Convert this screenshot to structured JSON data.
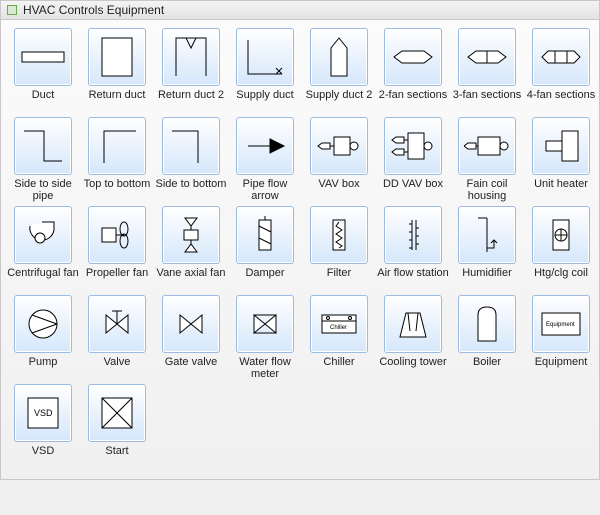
{
  "panel": {
    "title": "HVAC Controls Equipment"
  },
  "items": [
    {
      "id": "duct",
      "label": "Duct"
    },
    {
      "id": "return-duct",
      "label": "Return duct"
    },
    {
      "id": "return-duct-2",
      "label": "Return duct 2"
    },
    {
      "id": "supply-duct",
      "label": "Supply duct"
    },
    {
      "id": "supply-duct-2",
      "label": "Supply duct 2"
    },
    {
      "id": "2-fan-sections",
      "label": "2-fan sections"
    },
    {
      "id": "3-fan-sections",
      "label": "3-fan sections"
    },
    {
      "id": "4-fan-sections",
      "label": "4-fan sections"
    },
    {
      "id": "side-to-side-pipe",
      "label": "Side to side pipe"
    },
    {
      "id": "top-to-bottom",
      "label": "Top to bottom"
    },
    {
      "id": "side-to-bottom",
      "label": "Side to bottom"
    },
    {
      "id": "pipe-flow-arrow",
      "label": "Pipe flow arrow"
    },
    {
      "id": "vav-box",
      "label": "VAV box"
    },
    {
      "id": "dd-vav-box",
      "label": "DD VAV box"
    },
    {
      "id": "fan-coil-housing",
      "label": "Fain coil housing"
    },
    {
      "id": "unit-heater",
      "label": "Unit heater"
    },
    {
      "id": "centrifugal-fan",
      "label": "Centrifugal fan"
    },
    {
      "id": "propeller-fan",
      "label": "Propeller fan"
    },
    {
      "id": "vane-axial-fan",
      "label": "Vane axial fan"
    },
    {
      "id": "damper",
      "label": "Damper"
    },
    {
      "id": "filter",
      "label": "Filter"
    },
    {
      "id": "air-flow-station",
      "label": "Air flow station"
    },
    {
      "id": "humidifier",
      "label": "Humidifier"
    },
    {
      "id": "htg-clg-coil",
      "label": "Htg/clg coil"
    },
    {
      "id": "pump",
      "label": "Pump"
    },
    {
      "id": "valve",
      "label": "Valve"
    },
    {
      "id": "gate-valve",
      "label": "Gate valve"
    },
    {
      "id": "water-flow-meter",
      "label": "Water flow meter"
    },
    {
      "id": "chiller",
      "label": "Chiller"
    },
    {
      "id": "cooling-tower",
      "label": "Cooling tower"
    },
    {
      "id": "boiler",
      "label": "Boiler"
    },
    {
      "id": "equipment",
      "label": "Equipment"
    },
    {
      "id": "vsd",
      "label": "VSD"
    },
    {
      "id": "start",
      "label": "Start"
    }
  ],
  "style": {
    "tile_bg_top": "#ffffff",
    "tile_bg_mid": "#eef5fd",
    "tile_bg_bot": "#d5e7fb",
    "tile_border": "#9bbbe0",
    "panel_bg": "#f0f0f0",
    "stroke": "#000000",
    "label_fontsize": 11,
    "tile_size": 58,
    "cols": 8
  },
  "glyph_text": {
    "vsd": "VSD",
    "chiller": "Chiller",
    "equipment": "Equipment"
  }
}
